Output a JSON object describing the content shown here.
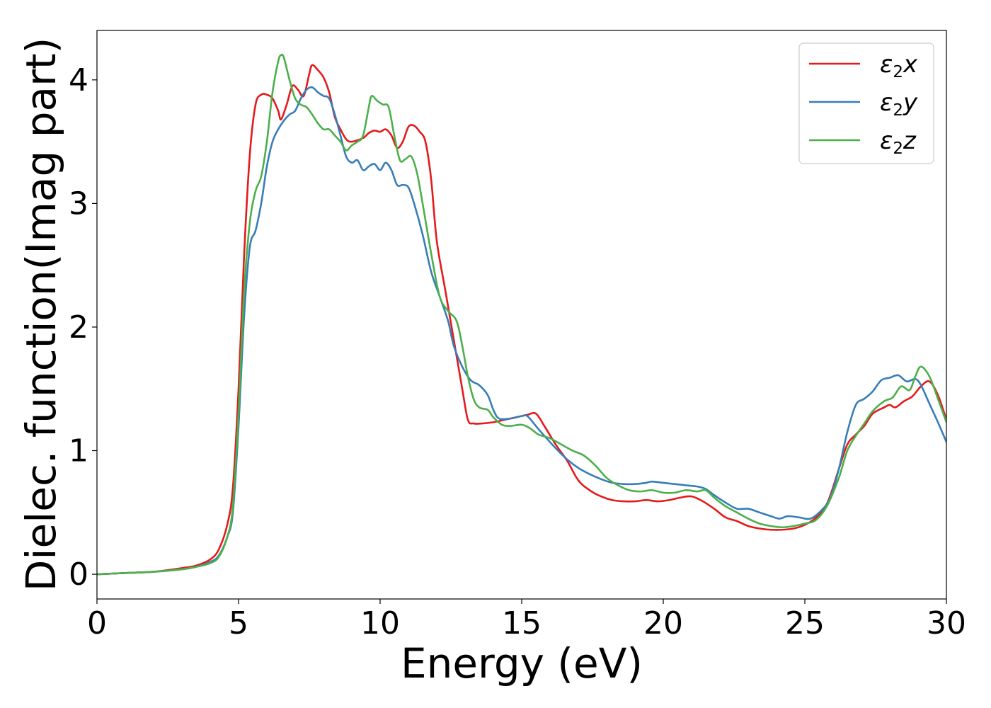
{
  "chart_data": {
    "type": "line",
    "title": "",
    "xlabel": "Energy (eV)",
    "ylabel": "Dielec. function(Imag part)",
    "xlim": [
      0,
      30
    ],
    "ylim": [
      -0.2,
      4.4
    ],
    "xticks": [
      0,
      5,
      10,
      15,
      20,
      25,
      30
    ],
    "yticks": [
      0,
      1,
      2,
      3,
      4
    ],
    "grid": false,
    "legend_position": "top-right",
    "series": [
      {
        "name": "ε2x",
        "symbol": "ε",
        "subscript": "2",
        "suffix": "x",
        "color": "#e41a1c",
        "points": [
          [
            0,
            0
          ],
          [
            1,
            0.01
          ],
          [
            2,
            0.02
          ],
          [
            3,
            0.05
          ],
          [
            3.5,
            0.07
          ],
          [
            4,
            0.12
          ],
          [
            4.3,
            0.2
          ],
          [
            4.6,
            0.4
          ],
          [
            4.8,
            0.7
          ],
          [
            5.0,
            1.5
          ],
          [
            5.2,
            2.6
          ],
          [
            5.4,
            3.4
          ],
          [
            5.6,
            3.8
          ],
          [
            5.8,
            3.88
          ],
          [
            6.0,
            3.88
          ],
          [
            6.2,
            3.85
          ],
          [
            6.4,
            3.75
          ],
          [
            6.5,
            3.68
          ],
          [
            6.7,
            3.8
          ],
          [
            6.9,
            3.95
          ],
          [
            7.1,
            3.92
          ],
          [
            7.3,
            3.87
          ],
          [
            7.5,
            4.05
          ],
          [
            7.6,
            4.12
          ],
          [
            7.8,
            4.08
          ],
          [
            8.0,
            4.02
          ],
          [
            8.2,
            3.9
          ],
          [
            8.4,
            3.7
          ],
          [
            8.6,
            3.6
          ],
          [
            8.8,
            3.52
          ],
          [
            9.0,
            3.5
          ],
          [
            9.4,
            3.53
          ],
          [
            9.6,
            3.57
          ],
          [
            9.8,
            3.59
          ],
          [
            10.0,
            3.58
          ],
          [
            10.2,
            3.6
          ],
          [
            10.4,
            3.55
          ],
          [
            10.6,
            3.45
          ],
          [
            10.8,
            3.5
          ],
          [
            11.0,
            3.62
          ],
          [
            11.2,
            3.63
          ],
          [
            11.4,
            3.58
          ],
          [
            11.6,
            3.5
          ],
          [
            11.8,
            3.2
          ],
          [
            12.0,
            2.7
          ],
          [
            12.3,
            2.3
          ],
          [
            12.6,
            1.9
          ],
          [
            12.9,
            1.5
          ],
          [
            13.1,
            1.25
          ],
          [
            13.3,
            1.22
          ],
          [
            13.6,
            1.22
          ],
          [
            14.0,
            1.23
          ],
          [
            14.4,
            1.25
          ],
          [
            14.8,
            1.27
          ],
          [
            15.2,
            1.29
          ],
          [
            15.5,
            1.3
          ],
          [
            15.8,
            1.2
          ],
          [
            16.2,
            1.05
          ],
          [
            16.6,
            0.92
          ],
          [
            17.0,
            0.76
          ],
          [
            17.4,
            0.68
          ],
          [
            17.8,
            0.63
          ],
          [
            18.2,
            0.6
          ],
          [
            18.6,
            0.59
          ],
          [
            19.0,
            0.59
          ],
          [
            19.4,
            0.6
          ],
          [
            19.8,
            0.59
          ],
          [
            20.2,
            0.6
          ],
          [
            20.6,
            0.62
          ],
          [
            21.0,
            0.63
          ],
          [
            21.4,
            0.59
          ],
          [
            21.8,
            0.53
          ],
          [
            22.2,
            0.46
          ],
          [
            22.6,
            0.43
          ],
          [
            23.0,
            0.39
          ],
          [
            23.4,
            0.37
          ],
          [
            23.8,
            0.36
          ],
          [
            24.2,
            0.36
          ],
          [
            24.6,
            0.37
          ],
          [
            25.0,
            0.4
          ],
          [
            25.4,
            0.46
          ],
          [
            25.8,
            0.58
          ],
          [
            26.2,
            0.85
          ],
          [
            26.5,
            1.05
          ],
          [
            26.8,
            1.13
          ],
          [
            27.1,
            1.2
          ],
          [
            27.4,
            1.3
          ],
          [
            27.8,
            1.35
          ],
          [
            28.0,
            1.37
          ],
          [
            28.2,
            1.35
          ],
          [
            28.5,
            1.4
          ],
          [
            28.8,
            1.44
          ],
          [
            29.1,
            1.52
          ],
          [
            29.4,
            1.56
          ],
          [
            29.7,
            1.45
          ],
          [
            30.0,
            1.25
          ]
        ]
      },
      {
        "name": "ε2y",
        "symbol": "ε",
        "subscript": "2",
        "suffix": "y",
        "color": "#377eb8",
        "points": [
          [
            0,
            0
          ],
          [
            1,
            0.01
          ],
          [
            2,
            0.02
          ],
          [
            3,
            0.04
          ],
          [
            3.5,
            0.06
          ],
          [
            4,
            0.1
          ],
          [
            4.3,
            0.15
          ],
          [
            4.6,
            0.3
          ],
          [
            4.8,
            0.5
          ],
          [
            5.0,
            1.2
          ],
          [
            5.2,
            2.1
          ],
          [
            5.4,
            2.65
          ],
          [
            5.6,
            2.78
          ],
          [
            5.8,
            3.0
          ],
          [
            6.0,
            3.3
          ],
          [
            6.2,
            3.5
          ],
          [
            6.4,
            3.6
          ],
          [
            6.6,
            3.67
          ],
          [
            6.8,
            3.72
          ],
          [
            7.0,
            3.75
          ],
          [
            7.2,
            3.85
          ],
          [
            7.4,
            3.92
          ],
          [
            7.6,
            3.94
          ],
          [
            7.8,
            3.9
          ],
          [
            8.0,
            3.87
          ],
          [
            8.2,
            3.85
          ],
          [
            8.4,
            3.72
          ],
          [
            8.6,
            3.55
          ],
          [
            8.8,
            3.38
          ],
          [
            9.0,
            3.33
          ],
          [
            9.2,
            3.35
          ],
          [
            9.4,
            3.27
          ],
          [
            9.6,
            3.3
          ],
          [
            9.8,
            3.32
          ],
          [
            10.0,
            3.27
          ],
          [
            10.2,
            3.33
          ],
          [
            10.4,
            3.27
          ],
          [
            10.6,
            3.15
          ],
          [
            10.8,
            3.15
          ],
          [
            11.0,
            3.13
          ],
          [
            11.2,
            3.0
          ],
          [
            11.5,
            2.75
          ],
          [
            11.8,
            2.45
          ],
          [
            12.1,
            2.25
          ],
          [
            12.4,
            2.05
          ],
          [
            12.6,
            1.85
          ],
          [
            12.9,
            1.68
          ],
          [
            13.2,
            1.57
          ],
          [
            13.5,
            1.53
          ],
          [
            13.8,
            1.45
          ],
          [
            14.0,
            1.33
          ],
          [
            14.2,
            1.26
          ],
          [
            14.6,
            1.26
          ],
          [
            15.0,
            1.28
          ],
          [
            15.2,
            1.28
          ],
          [
            15.5,
            1.2
          ],
          [
            15.8,
            1.12
          ],
          [
            16.2,
            1.02
          ],
          [
            16.6,
            0.93
          ],
          [
            17.0,
            0.86
          ],
          [
            17.4,
            0.81
          ],
          [
            17.8,
            0.77
          ],
          [
            18.2,
            0.74
          ],
          [
            18.6,
            0.73
          ],
          [
            19.0,
            0.73
          ],
          [
            19.4,
            0.74
          ],
          [
            19.6,
            0.75
          ],
          [
            20.0,
            0.74
          ],
          [
            20.4,
            0.73
          ],
          [
            20.8,
            0.72
          ],
          [
            21.2,
            0.71
          ],
          [
            21.5,
            0.69
          ],
          [
            21.8,
            0.64
          ],
          [
            22.2,
            0.58
          ],
          [
            22.6,
            0.53
          ],
          [
            23.0,
            0.53
          ],
          [
            23.4,
            0.5
          ],
          [
            23.8,
            0.47
          ],
          [
            24.1,
            0.45
          ],
          [
            24.4,
            0.47
          ],
          [
            24.8,
            0.46
          ],
          [
            25.2,
            0.45
          ],
          [
            25.6,
            0.52
          ],
          [
            25.9,
            0.62
          ],
          [
            26.2,
            0.85
          ],
          [
            26.5,
            1.15
          ],
          [
            26.8,
            1.37
          ],
          [
            27.1,
            1.42
          ],
          [
            27.4,
            1.48
          ],
          [
            27.7,
            1.57
          ],
          [
            28.0,
            1.59
          ],
          [
            28.3,
            1.61
          ],
          [
            28.6,
            1.56
          ],
          [
            28.9,
            1.58
          ],
          [
            29.1,
            1.53
          ],
          [
            29.4,
            1.38
          ],
          [
            29.7,
            1.23
          ],
          [
            30.0,
            1.07
          ]
        ]
      },
      {
        "name": "ε2z",
        "symbol": "ε",
        "subscript": "2",
        "suffix": "z",
        "color": "#4daf4a",
        "points": [
          [
            0,
            0
          ],
          [
            1,
            0.01
          ],
          [
            2,
            0.02
          ],
          [
            3,
            0.04
          ],
          [
            3.5,
            0.06
          ],
          [
            4,
            0.09
          ],
          [
            4.3,
            0.14
          ],
          [
            4.6,
            0.3
          ],
          [
            4.8,
            0.55
          ],
          [
            5.0,
            1.3
          ],
          [
            5.2,
            2.3
          ],
          [
            5.4,
            2.85
          ],
          [
            5.6,
            3.1
          ],
          [
            5.8,
            3.22
          ],
          [
            6.0,
            3.5
          ],
          [
            6.2,
            3.9
          ],
          [
            6.4,
            4.15
          ],
          [
            6.5,
            4.2
          ],
          [
            6.6,
            4.18
          ],
          [
            6.8,
            4.0
          ],
          [
            7.0,
            3.85
          ],
          [
            7.2,
            3.8
          ],
          [
            7.4,
            3.78
          ],
          [
            7.6,
            3.72
          ],
          [
            7.8,
            3.65
          ],
          [
            8.0,
            3.6
          ],
          [
            8.2,
            3.6
          ],
          [
            8.4,
            3.55
          ],
          [
            8.6,
            3.5
          ],
          [
            8.8,
            3.43
          ],
          [
            9.0,
            3.47
          ],
          [
            9.2,
            3.5
          ],
          [
            9.4,
            3.55
          ],
          [
            9.6,
            3.78
          ],
          [
            9.7,
            3.87
          ],
          [
            9.9,
            3.83
          ],
          [
            10.1,
            3.8
          ],
          [
            10.3,
            3.78
          ],
          [
            10.5,
            3.55
          ],
          [
            10.7,
            3.35
          ],
          [
            10.9,
            3.36
          ],
          [
            11.1,
            3.38
          ],
          [
            11.3,
            3.25
          ],
          [
            11.5,
            3.0
          ],
          [
            11.8,
            2.6
          ],
          [
            12.1,
            2.25
          ],
          [
            12.4,
            2.13
          ],
          [
            12.7,
            2.05
          ],
          [
            12.9,
            1.85
          ],
          [
            13.1,
            1.6
          ],
          [
            13.3,
            1.42
          ],
          [
            13.5,
            1.35
          ],
          [
            13.8,
            1.33
          ],
          [
            14.0,
            1.27
          ],
          [
            14.3,
            1.21
          ],
          [
            14.6,
            1.2
          ],
          [
            15.0,
            1.21
          ],
          [
            15.3,
            1.18
          ],
          [
            15.6,
            1.13
          ],
          [
            16.0,
            1.1
          ],
          [
            16.4,
            1.05
          ],
          [
            16.8,
            1.0
          ],
          [
            17.2,
            0.96
          ],
          [
            17.6,
            0.88
          ],
          [
            18.0,
            0.78
          ],
          [
            18.4,
            0.72
          ],
          [
            18.8,
            0.68
          ],
          [
            19.2,
            0.67
          ],
          [
            19.6,
            0.68
          ],
          [
            20.0,
            0.66
          ],
          [
            20.4,
            0.66
          ],
          [
            20.8,
            0.68
          ],
          [
            21.2,
            0.67
          ],
          [
            21.5,
            0.68
          ],
          [
            21.8,
            0.62
          ],
          [
            22.2,
            0.55
          ],
          [
            22.6,
            0.5
          ],
          [
            23.0,
            0.45
          ],
          [
            23.4,
            0.41
          ],
          [
            23.8,
            0.39
          ],
          [
            24.2,
            0.38
          ],
          [
            24.6,
            0.39
          ],
          [
            25.0,
            0.41
          ],
          [
            25.4,
            0.44
          ],
          [
            25.8,
            0.56
          ],
          [
            26.2,
            0.78
          ],
          [
            26.5,
            1.0
          ],
          [
            26.8,
            1.12
          ],
          [
            27.1,
            1.22
          ],
          [
            27.4,
            1.32
          ],
          [
            27.8,
            1.4
          ],
          [
            28.1,
            1.43
          ],
          [
            28.4,
            1.52
          ],
          [
            28.7,
            1.49
          ],
          [
            28.9,
            1.6
          ],
          [
            29.1,
            1.68
          ],
          [
            29.4,
            1.6
          ],
          [
            29.7,
            1.42
          ],
          [
            30.0,
            1.23
          ]
        ]
      }
    ]
  }
}
